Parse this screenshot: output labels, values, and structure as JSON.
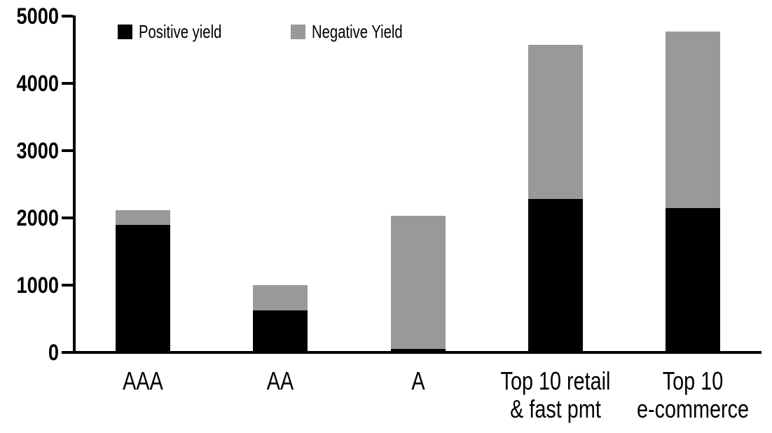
{
  "chart_data": {
    "type": "bar",
    "stacked": true,
    "title": "",
    "categories": [
      "AAA",
      "AA",
      "A",
      "Top 10 retail\n& fast pmt",
      "Top 10\ne-commerce"
    ],
    "series": [
      {
        "name": "Positive yield",
        "color": "#000000",
        "values": [
          1900,
          620,
          50,
          2280,
          2150
        ]
      },
      {
        "name": "Negative Yield",
        "color": "#999999",
        "values": [
          210,
          380,
          1980,
          2290,
          2620
        ]
      }
    ],
    "totals": [
      2110,
      1000,
      2030,
      4570,
      4770
    ],
    "xlabel": "",
    "ylabel": "",
    "ylim": [
      0,
      5000
    ],
    "yticks": [
      0,
      1000,
      2000,
      3000,
      4000,
      5000
    ],
    "grid": false,
    "legend_position": "top-left-inside",
    "axis_color": "#000000",
    "background_color": "#ffffff"
  }
}
